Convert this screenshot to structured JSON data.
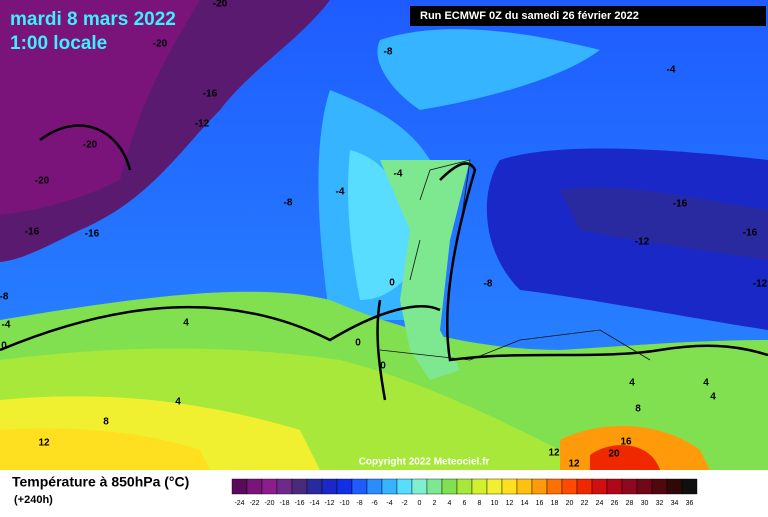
{
  "header": {
    "date": "mardi 8 mars 2022",
    "time": "1:00 locale",
    "run": "Run ECMWF 0Z du samedi 26 février 2022"
  },
  "map": {
    "copyright": "Copyright 2022 Meteociel.fr",
    "contour_labels": [
      "-20",
      "-20",
      "-16",
      "-12",
      "-20",
      "-20",
      "-16",
      "-16",
      "-8",
      "-4",
      "-4",
      "-8",
      "-4",
      "-16",
      "-12",
      "-16",
      "-12",
      "-8",
      "-8",
      "-4",
      "0",
      "4",
      "0",
      "0",
      "0",
      "4",
      "8",
      "12",
      "4",
      "4",
      "4",
      "8",
      "12",
      "12",
      "16",
      "20"
    ]
  },
  "legend": {
    "title": "Température à 850hPa (°C)",
    "lead": "(+240h)",
    "ticks": [
      "-24",
      "-22",
      "-20",
      "-18",
      "-16",
      "-14",
      "-12",
      "-10",
      "-8",
      "-6",
      "-4",
      "-2",
      "0",
      "2",
      "4",
      "6",
      "8",
      "10",
      "12",
      "14",
      "16",
      "18",
      "20",
      "22",
      "24",
      "26",
      "28",
      "30",
      "32",
      "34",
      "36"
    ],
    "colors": [
      "#5a0a5a",
      "#7a147a",
      "#8c1e8c",
      "#6e2a8a",
      "#4a2a7a",
      "#2a2aa0",
      "#1a28c8",
      "#1030e8",
      "#1e5cff",
      "#2a8cff",
      "#36b4ff",
      "#58dcff",
      "#7ef0d0",
      "#7ee890",
      "#80e050",
      "#a8e83a",
      "#d0f030",
      "#f0f030",
      "#ffe020",
      "#ffc010",
      "#ff9a0a",
      "#ff7000",
      "#ff4a00",
      "#f02800",
      "#d01010",
      "#b00818",
      "#900820",
      "#700818",
      "#500810",
      "#300808",
      "#101010"
    ]
  }
}
